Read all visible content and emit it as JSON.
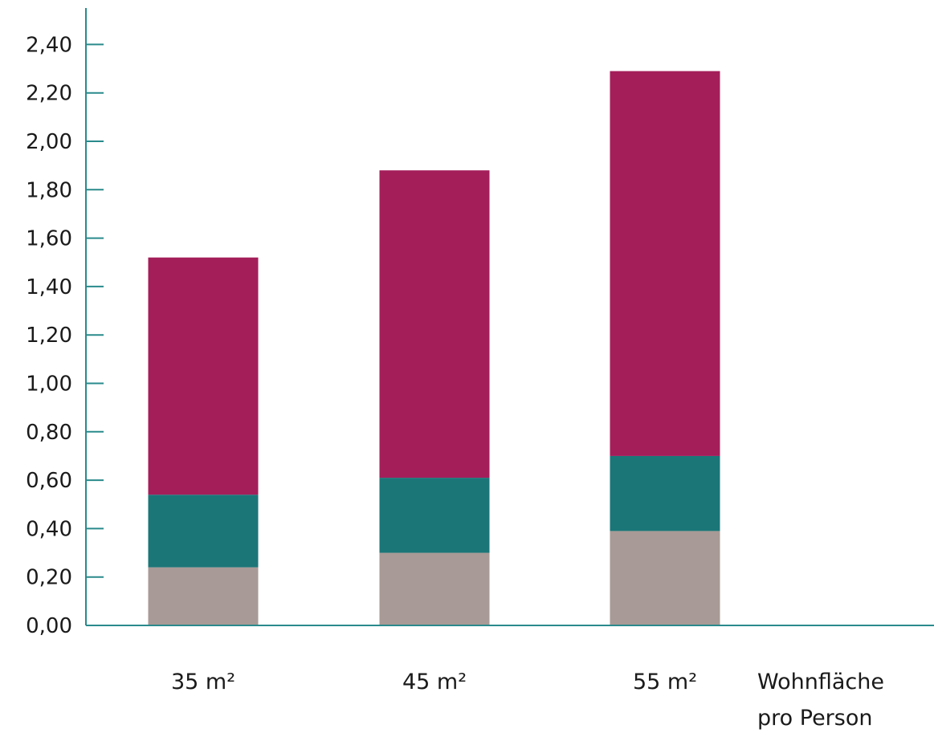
{
  "chart_data": {
    "type": "bar",
    "stacked": true,
    "categories": [
      "35 m²",
      "45 m²",
      "55 m²"
    ],
    "series": [
      {
        "color": "#a89a96",
        "values": [
          0.24,
          0.3,
          0.39
        ]
      },
      {
        "color": "#1b7678",
        "values": [
          0.3,
          0.31,
          0.31
        ]
      },
      {
        "color": "#a41e5a",
        "values": [
          0.98,
          1.27,
          1.59
        ]
      }
    ],
    "xlabel_lines": [
      "Wohnfläche",
      "pro Person"
    ],
    "ylabel": "",
    "ylim": [
      0,
      2.5
    ],
    "yticks": [
      "0,00",
      "0,20",
      "0,40",
      "0,60",
      "0,80",
      "1,00",
      "1,20",
      "1,40",
      "1,60",
      "1,80",
      "2,00",
      "2,20",
      "2,40"
    ],
    "grid": false,
    "axis_color": "#2a8a8c"
  }
}
